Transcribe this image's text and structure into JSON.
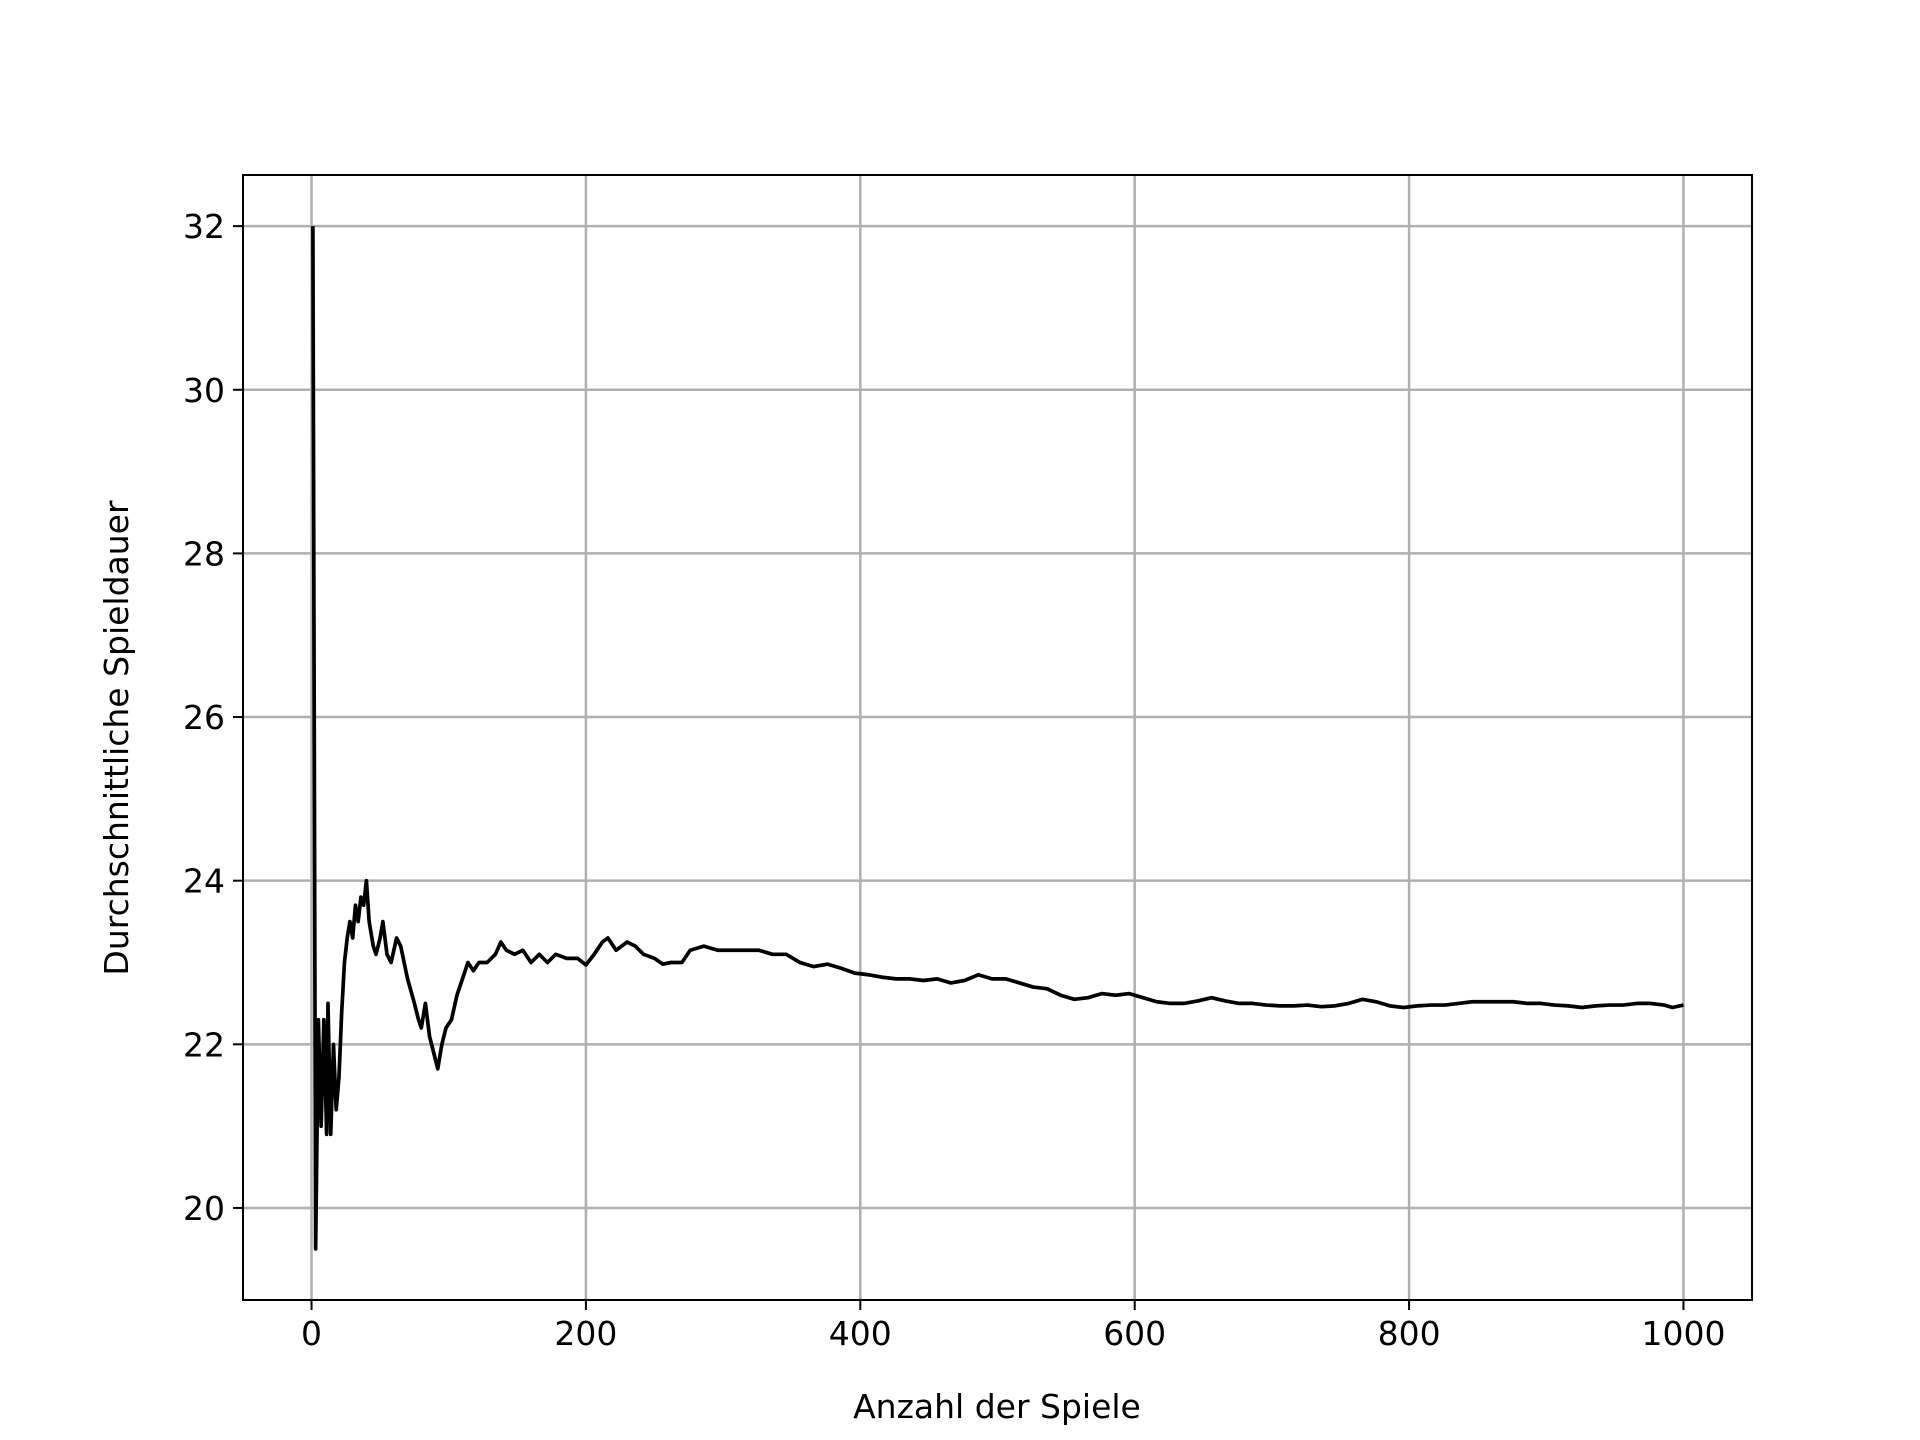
{
  "chart_data": {
    "type": "line",
    "xlabel": "Anzahl der Spiele",
    "ylabel": "Durchschnittliche Spieldauer",
    "xlim": [
      -49.95,
      1049.95
    ],
    "ylim": [
      18.875,
      32.625
    ],
    "xticks": [
      0,
      200,
      400,
      600,
      800,
      1000
    ],
    "yticks": [
      20,
      22,
      24,
      26,
      28,
      30,
      32
    ],
    "grid": true,
    "series": [
      {
        "color": "#000000",
        "x": [
          1,
          3,
          5,
          7,
          9,
          11,
          12,
          14,
          16,
          18,
          20,
          22,
          24,
          26,
          28,
          30,
          32,
          34,
          36,
          38,
          40,
          42,
          45,
          47,
          50,
          52,
          55,
          58,
          62,
          65,
          70,
          75,
          78,
          80,
          83,
          86,
          89,
          92,
          95,
          98,
          102,
          106,
          110,
          114,
          118,
          122,
          128,
          134,
          138,
          142,
          148,
          154,
          160,
          166,
          172,
          178,
          186,
          194,
          200,
          206,
          212,
          216,
          222,
          230,
          236,
          242,
          250,
          256,
          262,
          270,
          276,
          286,
          296,
          306,
          316,
          326,
          336,
          346,
          356,
          366,
          376,
          386,
          396,
          406,
          416,
          426,
          436,
          446,
          456,
          466,
          476,
          486,
          496,
          506,
          516,
          526,
          536,
          546,
          556,
          566,
          576,
          586,
          596,
          606,
          616,
          626,
          636,
          646,
          656,
          666,
          676,
          686,
          696,
          706,
          716,
          726,
          736,
          746,
          756,
          766,
          776,
          786,
          796,
          806,
          816,
          826,
          836,
          846,
          856,
          866,
          876,
          886,
          896,
          906,
          916,
          926,
          936,
          946,
          956,
          966,
          976,
          986,
          992,
          1000
        ],
        "values": [
          32,
          19.5,
          22.3,
          21.0,
          22.3,
          20.9,
          22.5,
          20.9,
          22.0,
          21.2,
          21.6,
          22.4,
          23.0,
          23.3,
          23.5,
          23.3,
          23.7,
          23.5,
          23.8,
          23.7,
          24.0,
          23.5,
          23.2,
          23.1,
          23.3,
          23.5,
          23.1,
          23.0,
          23.3,
          23.2,
          22.8,
          22.5,
          22.3,
          22.2,
          22.5,
          22.1,
          21.9,
          21.7,
          22.0,
          22.2,
          22.3,
          22.6,
          22.8,
          23.0,
          22.9,
          23.0,
          23.0,
          23.1,
          23.25,
          23.15,
          23.1,
          23.15,
          23.0,
          23.1,
          23.0,
          23.1,
          23.05,
          23.05,
          22.97,
          23.1,
          23.25,
          23.3,
          23.15,
          23.25,
          23.2,
          23.1,
          23.05,
          22.98,
          23.0,
          23.0,
          23.15,
          23.2,
          23.15,
          23.15,
          23.15,
          23.15,
          23.1,
          23.1,
          23.0,
          22.95,
          22.98,
          22.93,
          22.87,
          22.85,
          22.82,
          22.8,
          22.8,
          22.78,
          22.8,
          22.75,
          22.78,
          22.85,
          22.8,
          22.8,
          22.75,
          22.7,
          22.68,
          22.6,
          22.55,
          22.57,
          22.62,
          22.6,
          22.62,
          22.57,
          22.52,
          22.5,
          22.5,
          22.53,
          22.57,
          22.53,
          22.5,
          22.5,
          22.48,
          22.47,
          22.47,
          22.48,
          22.46,
          22.47,
          22.5,
          22.55,
          22.52,
          22.47,
          22.45,
          22.47,
          22.48,
          22.48,
          22.5,
          22.52,
          22.52,
          22.52,
          22.52,
          22.5,
          22.5,
          22.48,
          22.47,
          22.45,
          22.47,
          22.48,
          22.48,
          22.5,
          22.5,
          22.48,
          22.45,
          22.48
        ]
      }
    ]
  }
}
